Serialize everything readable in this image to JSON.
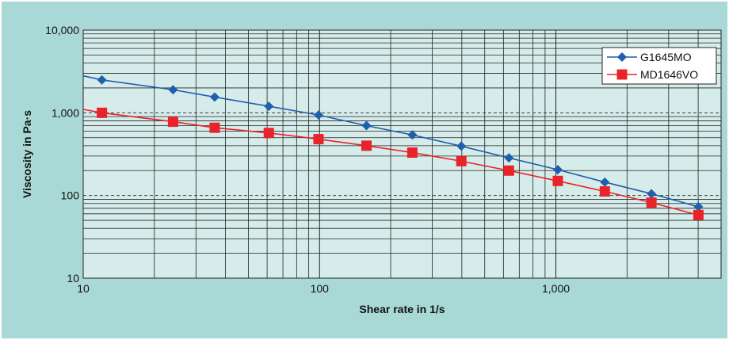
{
  "chart_data": {
    "type": "line",
    "title": "",
    "xlabel": "Shear rate in 1/s",
    "ylabel": "Viscosity in Pa·s",
    "x_scale": "log",
    "y_scale": "log",
    "xlim": [
      10,
      5000
    ],
    "ylim": [
      10,
      10000
    ],
    "x_ticks": [
      10,
      100,
      1000
    ],
    "x_tick_labels": [
      "10",
      "100",
      "1,000"
    ],
    "y_ticks": [
      10,
      100,
      1000,
      10000
    ],
    "y_tick_labels": [
      "10",
      "100",
      "1,000",
      "10,000"
    ],
    "grid": true,
    "legend_position": "top-right",
    "series": [
      {
        "name": "G1645MO",
        "color": "#1f5fae",
        "marker": "diamond",
        "x": [
          12,
          24,
          36,
          61,
          99,
          158,
          247,
          398,
          633,
          1019,
          1611,
          2537,
          4010
        ],
        "y": [
          2500,
          1900,
          1550,
          1200,
          940,
          700,
          540,
          395,
          285,
          205,
          145,
          105,
          73
        ],
        "fit_start": {
          "x": 10,
          "y": 2800
        }
      },
      {
        "name": "MD1646VO",
        "color": "#e8232a",
        "marker": "square",
        "x": [
          12,
          24,
          36,
          61,
          99,
          158,
          247,
          398,
          633,
          1019,
          1611,
          2537,
          4010
        ],
        "y": [
          1000,
          780,
          660,
          570,
          480,
          400,
          330,
          260,
          200,
          150,
          112,
          82,
          58
        ],
        "fit_start": {
          "x": 10,
          "y": 1100
        }
      }
    ]
  }
}
